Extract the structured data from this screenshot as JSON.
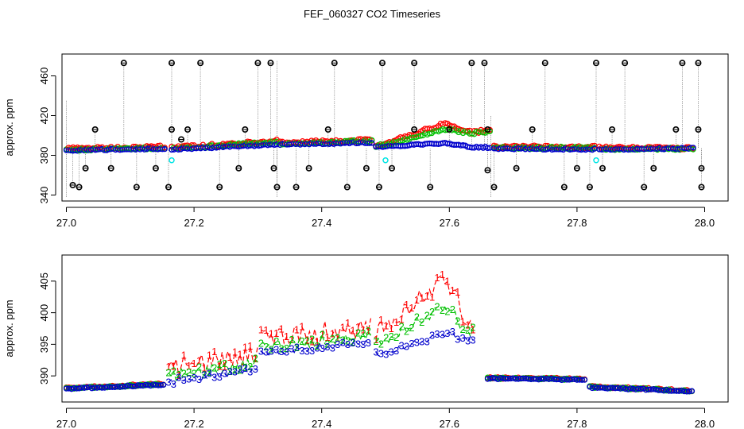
{
  "title": "FEF_060327  CO2 Timeseries",
  "colors": {
    "s1": "#ff0000",
    "s2": "#00c000",
    "s3": "#0000cc",
    "spike": "#000000",
    "cyan": "#00e5e5",
    "dropline": "#888888"
  },
  "chart_data": [
    {
      "type": "scatter",
      "name": "overview",
      "ylabel": "approx. ppm",
      "xlim": [
        27.0,
        28.0
      ],
      "ylim": [
        338,
        478
      ],
      "xticks": [
        27.0,
        27.2,
        27.4,
        27.6,
        27.8,
        28.0
      ],
      "xtick_labels": [
        "27.0",
        "27.2",
        "27.4",
        "27.6",
        "27.8",
        "28.0"
      ],
      "yticks": [
        340,
        380,
        420,
        460
      ],
      "ytick_labels": [
        "340",
        "380",
        "420",
        "460"
      ],
      "segments": [
        [
          27.0,
          27.155,
          385,
          387,
          387
        ],
        [
          27.165,
          27.33,
          386,
          393,
          391
        ],
        [
          27.335,
          27.48,
          391,
          394,
          393
        ],
        [
          27.485,
          27.665,
          389,
          404,
          388
        ],
        [
          27.67,
          27.83,
          387,
          387,
          386
        ],
        [
          27.835,
          27.985,
          386,
          386,
          387
        ]
      ],
      "bump": {
        "start": 27.5,
        "end": 27.635,
        "peak_x": 27.595,
        "s1_extra": 13,
        "s2_extra": 8,
        "s3_extra": 4
      },
      "spikes": [
        [
          27.01,
          350
        ],
        [
          27.02,
          348
        ],
        [
          27.03,
          367
        ],
        [
          27.045,
          406
        ],
        [
          27.07,
          367
        ],
        [
          27.09,
          473
        ],
        [
          27.11,
          348
        ],
        [
          27.14,
          367
        ],
        [
          27.16,
          348
        ],
        [
          27.165,
          406
        ],
        [
          27.165,
          473
        ],
        [
          27.18,
          396
        ],
        [
          27.19,
          406
        ],
        [
          27.21,
          473
        ],
        [
          27.24,
          348
        ],
        [
          27.27,
          367
        ],
        [
          27.28,
          406
        ],
        [
          27.3,
          473
        ],
        [
          27.32,
          473
        ],
        [
          27.325,
          367
        ],
        [
          27.33,
          348
        ],
        [
          27.36,
          348
        ],
        [
          27.38,
          367
        ],
        [
          27.41,
          406
        ],
        [
          27.42,
          473
        ],
        [
          27.44,
          348
        ],
        [
          27.47,
          367
        ],
        [
          27.49,
          348
        ],
        [
          27.495,
          473
        ],
        [
          27.51,
          367
        ],
        [
          27.545,
          406
        ],
        [
          27.545,
          473
        ],
        [
          27.57,
          348
        ],
        [
          27.6,
          406
        ],
        [
          27.635,
          473
        ],
        [
          27.655,
          473
        ],
        [
          27.66,
          406
        ],
        [
          27.66,
          365
        ],
        [
          27.67,
          348
        ],
        [
          27.705,
          367
        ],
        [
          27.73,
          406
        ],
        [
          27.75,
          473
        ],
        [
          27.78,
          348
        ],
        [
          27.8,
          367
        ],
        [
          27.82,
          348
        ],
        [
          27.83,
          473
        ],
        [
          27.84,
          367
        ],
        [
          27.855,
          406
        ],
        [
          27.875,
          473
        ],
        [
          27.905,
          348
        ],
        [
          27.92,
          367
        ],
        [
          27.955,
          406
        ],
        [
          27.965,
          473
        ],
        [
          27.99,
          473
        ],
        [
          27.99,
          406
        ],
        [
          27.995,
          367
        ],
        [
          27.995,
          348
        ]
      ],
      "cyan_points": [
        [
          27.165,
          375
        ],
        [
          27.5,
          375
        ],
        [
          27.83,
          375
        ]
      ]
    },
    {
      "type": "scatter",
      "name": "zoom",
      "ylabel": "approx. ppm",
      "xlim": [
        27.0,
        28.0
      ],
      "ylim": [
        386.5,
        408.5
      ],
      "xticks": [
        27.0,
        27.2,
        27.4,
        27.6,
        27.8,
        28.0
      ],
      "xtick_labels": [
        "27.0",
        "27.2",
        "27.4",
        "27.6",
        "27.8",
        "28.0"
      ],
      "yticks": [
        390,
        395,
        400,
        405
      ],
      "ytick_labels": [
        "390",
        "395",
        "400",
        "405"
      ],
      "series_labels": [
        "1",
        "2",
        "3"
      ],
      "segments": [
        [
          27.0,
          27.155,
          388.0,
          388.6,
          388.6
        ],
        [
          27.16,
          27.3,
          389.0,
          391.0,
          391.0
        ],
        [
          27.305,
          27.48,
          393.5,
          395.5,
          394.5
        ],
        [
          27.485,
          27.64,
          393.0,
          396.0,
          390.5
        ],
        [
          27.66,
          27.815,
          389.6,
          389.4,
          388.8
        ],
        [
          27.82,
          27.98,
          388.2,
          387.6,
          388.4
        ]
      ],
      "s1_offset": 2.4,
      "s2_offset": 1.0,
      "peak": {
        "start": 27.46,
        "end": 27.63,
        "peak_x": 27.595,
        "s1_extra": 8,
        "s2_extra": 5,
        "s3_extra": 1.6
      }
    }
  ]
}
